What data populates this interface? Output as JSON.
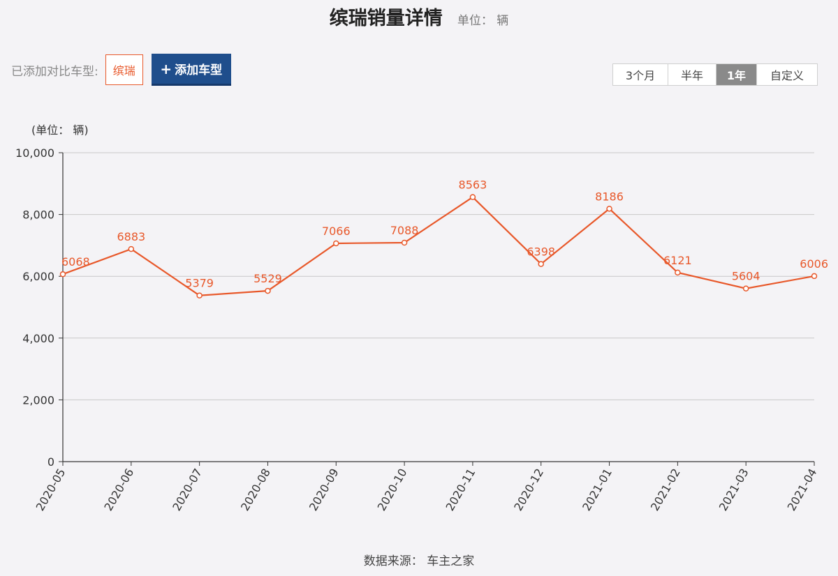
{
  "header": {
    "title": "缤瑞销量详情",
    "unit": "单位： 辆"
  },
  "compare": {
    "label": "已添加对比车型:",
    "models": [
      "缤瑞"
    ],
    "add_button_plus": "+",
    "add_button_label": "添加车型"
  },
  "range": {
    "options": [
      "3个月",
      "半年",
      "1年",
      "自定义"
    ],
    "selected": "1年"
  },
  "chart_data": {
    "type": "line",
    "unit_label": "(单位： 辆)",
    "categories": [
      "2020-05",
      "2020-06",
      "2020-07",
      "2020-08",
      "2020-09",
      "2020-10",
      "2020-11",
      "2020-12",
      "2021-01",
      "2021-02",
      "2021-03",
      "2021-04"
    ],
    "series": [
      {
        "values": [
          6068,
          6883,
          5379,
          5529,
          7066,
          7088,
          8563,
          6398,
          8186,
          6121,
          5604,
          6006
        ]
      }
    ],
    "y_ticks": [
      "0",
      "2,000",
      "4,000",
      "6,000",
      "8,000",
      "10,000"
    ],
    "y_tick_values": [
      0,
      2000,
      4000,
      6000,
      8000,
      10000
    ],
    "ylim": [
      0,
      10000
    ],
    "grid": true,
    "line_color": "#e8582a"
  },
  "footer": {
    "source": "数据来源： 车主之家"
  }
}
